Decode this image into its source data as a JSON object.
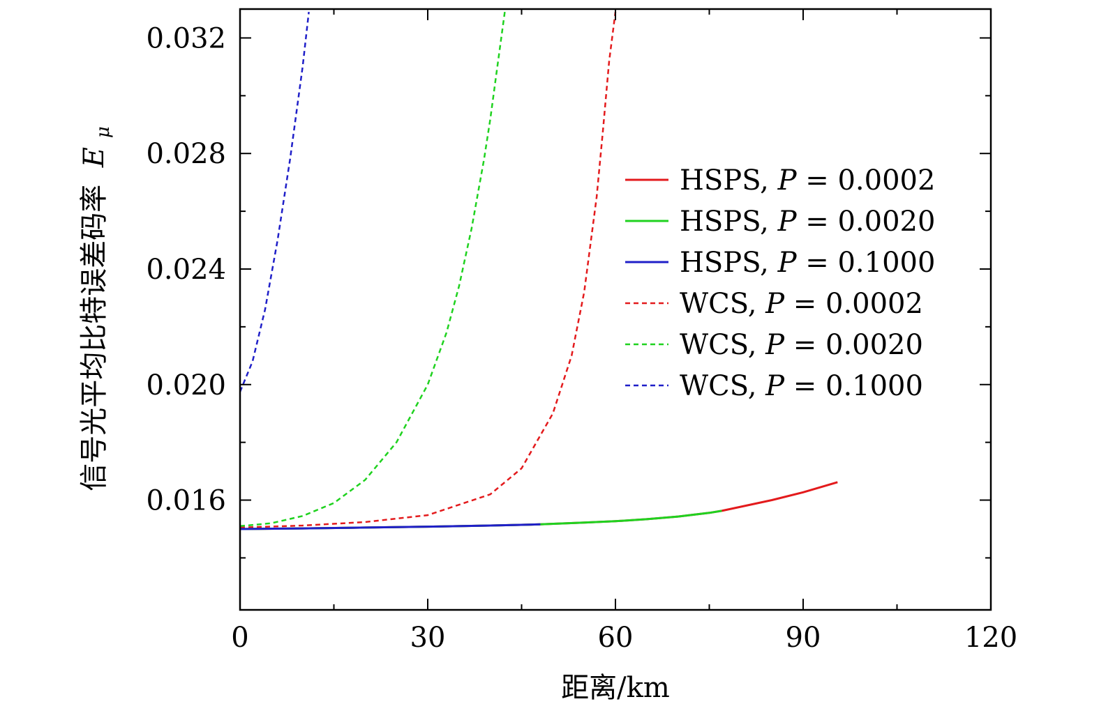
{
  "chart_data": {
    "type": "line",
    "title": "",
    "xlabel": "距离/km",
    "ylabel_cjk": "信号光平均比特误差码率",
    "ylabel_symbol": "E",
    "ylabel_subscript": "μ",
    "xlim": [
      0,
      120
    ],
    "ylim": [
      0.0122,
      0.033
    ],
    "xticks": [
      0,
      30,
      60,
      90,
      120
    ],
    "xtick_labels": [
      "0",
      "30",
      "60",
      "90",
      "120"
    ],
    "yticks": [
      0.016,
      0.02,
      0.024,
      0.028,
      0.032
    ],
    "ytick_labels": [
      "0.016",
      "0.020",
      "0.024",
      "0.028",
      "0.032"
    ],
    "legend_position": "right",
    "series": [
      {
        "name": "HSPS",
        "p_label": "P",
        "p_value": "0.0002",
        "color": "#e31a1c",
        "style": "solid",
        "x": [
          0,
          10,
          20,
          30,
          40,
          48,
          55,
          60,
          65,
          70,
          75,
          77,
          80,
          85,
          90,
          95.5
        ],
        "y": [
          0.015,
          0.01502,
          0.01505,
          0.01508,
          0.01512,
          0.01516,
          0.01522,
          0.01527,
          0.01534,
          0.01543,
          0.01556,
          0.01563,
          0.01577,
          0.016,
          0.01627,
          0.01662
        ]
      },
      {
        "name": "HSPS",
        "p_label": "P",
        "p_value": "0.0020",
        "color": "#1fd21f",
        "style": "solid",
        "x": [
          0,
          10,
          20,
          30,
          40,
          48,
          55,
          60,
          65,
          70,
          75,
          77
        ],
        "y": [
          0.015,
          0.01502,
          0.01505,
          0.01508,
          0.01512,
          0.01516,
          0.01522,
          0.01527,
          0.01534,
          0.01543,
          0.01556,
          0.01563
        ]
      },
      {
        "name": "HSPS",
        "p_label": "P",
        "p_value": "0.1000",
        "color": "#1f1fc8",
        "style": "solid",
        "x": [
          0,
          10,
          20,
          30,
          40,
          48
        ],
        "y": [
          0.015,
          0.01502,
          0.01505,
          0.01508,
          0.01512,
          0.01516
        ]
      },
      {
        "name": "WCS",
        "p_label": "P",
        "p_value": "0.0002",
        "color": "#e31a1c",
        "style": "dashed",
        "x": [
          0,
          10,
          20,
          30,
          40,
          45,
          50,
          53,
          55,
          57,
          58,
          59,
          60
        ],
        "y": [
          0.01505,
          0.01512,
          0.01524,
          0.01548,
          0.0162,
          0.0171,
          0.019,
          0.021,
          0.0232,
          0.0265,
          0.0288,
          0.0312,
          0.0329
        ]
      },
      {
        "name": "WCS",
        "p_label": "P",
        "p_value": "0.0020",
        "color": "#1fd21f",
        "style": "dashed",
        "x": [
          0,
          5,
          10,
          15,
          20,
          25,
          30,
          33,
          35,
          37,
          39,
          40,
          41,
          42,
          42.5
        ],
        "y": [
          0.0151,
          0.0152,
          0.01545,
          0.0159,
          0.0167,
          0.018,
          0.02,
          0.0218,
          0.0234,
          0.0254,
          0.0278,
          0.0292,
          0.0308,
          0.0324,
          0.0332
        ]
      },
      {
        "name": "WCS",
        "p_label": "P",
        "p_value": "0.1000",
        "color": "#1f1fc8",
        "style": "dashed",
        "x": [
          0,
          2,
          4,
          6,
          8,
          10,
          11
        ],
        "y": [
          0.01975,
          0.0208,
          0.0226,
          0.025,
          0.0278,
          0.031,
          0.0329
        ]
      }
    ]
  }
}
